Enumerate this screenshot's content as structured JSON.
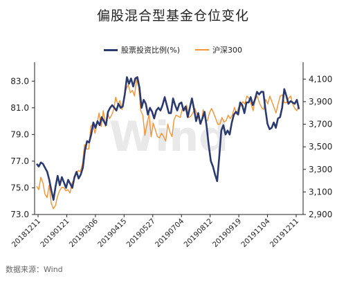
{
  "title": "偏股混合型基金仓位变化",
  "source": "数据来源：Wind",
  "watermark": "Wind",
  "colors": {
    "left_series": "#2b3a6e",
    "right_series": "#f19336"
  },
  "chart_data": {
    "type": "line",
    "title": "偏股混合型基金仓位变化",
    "legend_position": "top-center",
    "grid": false,
    "x_tick_labels": [
      "20181211",
      "20190121",
      "20190306",
      "20190415",
      "20190527",
      "20190704",
      "20190812",
      "20190919",
      "20191104",
      "20191211"
    ],
    "y_left": {
      "ylim": [
        73.0,
        84.0
      ],
      "ticks": [
        "83.0",
        "81.0",
        "79.0",
        "77.0",
        "75.0",
        "73.0"
      ],
      "tick_values": [
        83,
        81,
        79,
        77,
        75,
        73
      ]
    },
    "y_right": {
      "ylim": [
        2900,
        4200
      ],
      "ticks": [
        "4,100",
        "3,900",
        "3,700",
        "3,500",
        "3,300",
        "3,100",
        "2,900"
      ],
      "tick_values": [
        4100,
        3900,
        3700,
        3500,
        3300,
        3100,
        2900
      ]
    },
    "series": [
      {
        "name": "股票投资比例(%)",
        "axis": "left",
        "values": [
          76.8,
          76.6,
          76.9,
          76.8,
          76.5,
          76.2,
          75.6,
          74.8,
          74.1,
          75.1,
          75.9,
          75.2,
          75.8,
          75.4,
          75.0,
          75.6,
          75.3,
          75.0,
          75.8,
          76.2,
          75.7,
          76.0,
          76.5,
          77.8,
          78.5,
          78.4,
          79.0,
          79.9,
          79.5,
          80.0,
          79.7,
          80.3,
          80.0,
          79.7,
          80.7,
          81.0,
          81.2,
          81.0,
          80.8,
          81.3,
          81.0,
          81.1,
          82.0,
          83.3,
          82.8,
          83.2,
          82.6,
          83.2,
          83.3,
          82.5,
          81.0,
          81.6,
          81.3,
          80.5,
          81.0,
          80.7,
          80.2,
          80.8,
          81.0,
          80.8,
          81.2,
          81.8,
          81.2,
          80.6,
          80.6,
          81.7,
          81.2,
          80.8,
          81.3,
          81.4,
          80.8,
          81.1,
          80.3,
          81.0,
          81.7,
          80.9,
          80.0,
          80.6,
          79.8,
          80.2,
          80.7,
          79.6,
          78.2,
          77.0,
          76.6,
          76.0,
          75.5,
          77.3,
          79.3,
          79.7,
          79.0,
          79.3,
          79.0,
          79.9,
          80.5,
          80.7,
          80.5,
          81.4,
          81.2,
          80.6,
          81.4,
          81.4,
          81.8,
          81.2,
          81.6,
          82.2,
          82.0,
          82.2,
          82.2,
          80.9,
          79.8,
          79.4,
          79.5,
          79.9,
          79.5,
          80.2,
          80.3,
          81.0,
          82.4,
          81.9,
          81.3,
          81.5,
          81.4,
          81.3,
          81.6,
          80.9
        ]
      },
      {
        "name": "沪深300",
        "axis": "right",
        "values": [
          3150,
          3120,
          3230,
          3180,
          3080,
          3050,
          3160,
          3000,
          2950,
          2980,
          3060,
          3110,
          3140,
          3140,
          3110,
          3120,
          3090,
          3180,
          3210,
          3260,
          3290,
          3280,
          3350,
          3520,
          3480,
          3480,
          3680,
          3700,
          3620,
          3700,
          3800,
          3680,
          3820,
          3680,
          3800,
          3750,
          3780,
          3830,
          3940,
          3870,
          3910,
          3830,
          3950,
          4010,
          4050,
          3980,
          4000,
          3950,
          4100,
          4030,
          3820,
          3780,
          3600,
          3700,
          3790,
          3590,
          3710,
          3650,
          3590,
          3580,
          3620,
          3590,
          3550,
          3700,
          3630,
          3590,
          3740,
          3780,
          3770,
          3760,
          3840,
          3820,
          3870,
          3760,
          3770,
          3800,
          3840,
          3790,
          3740,
          3700,
          3830,
          3740,
          3730,
          3800,
          3840,
          3800,
          3750,
          3700,
          3700,
          3760,
          3720,
          3730,
          3780,
          3750,
          3780,
          3850,
          3790,
          3850,
          3860,
          3900,
          3880,
          3950,
          3930,
          3880,
          3820,
          3920,
          3950,
          3890,
          3850,
          3830,
          3920,
          3880,
          3950,
          3900,
          3850,
          3800,
          3880,
          3950,
          3960,
          3890,
          3890,
          3930,
          3950,
          3880,
          3840,
          3820,
          3870
        ]
      }
    ]
  }
}
